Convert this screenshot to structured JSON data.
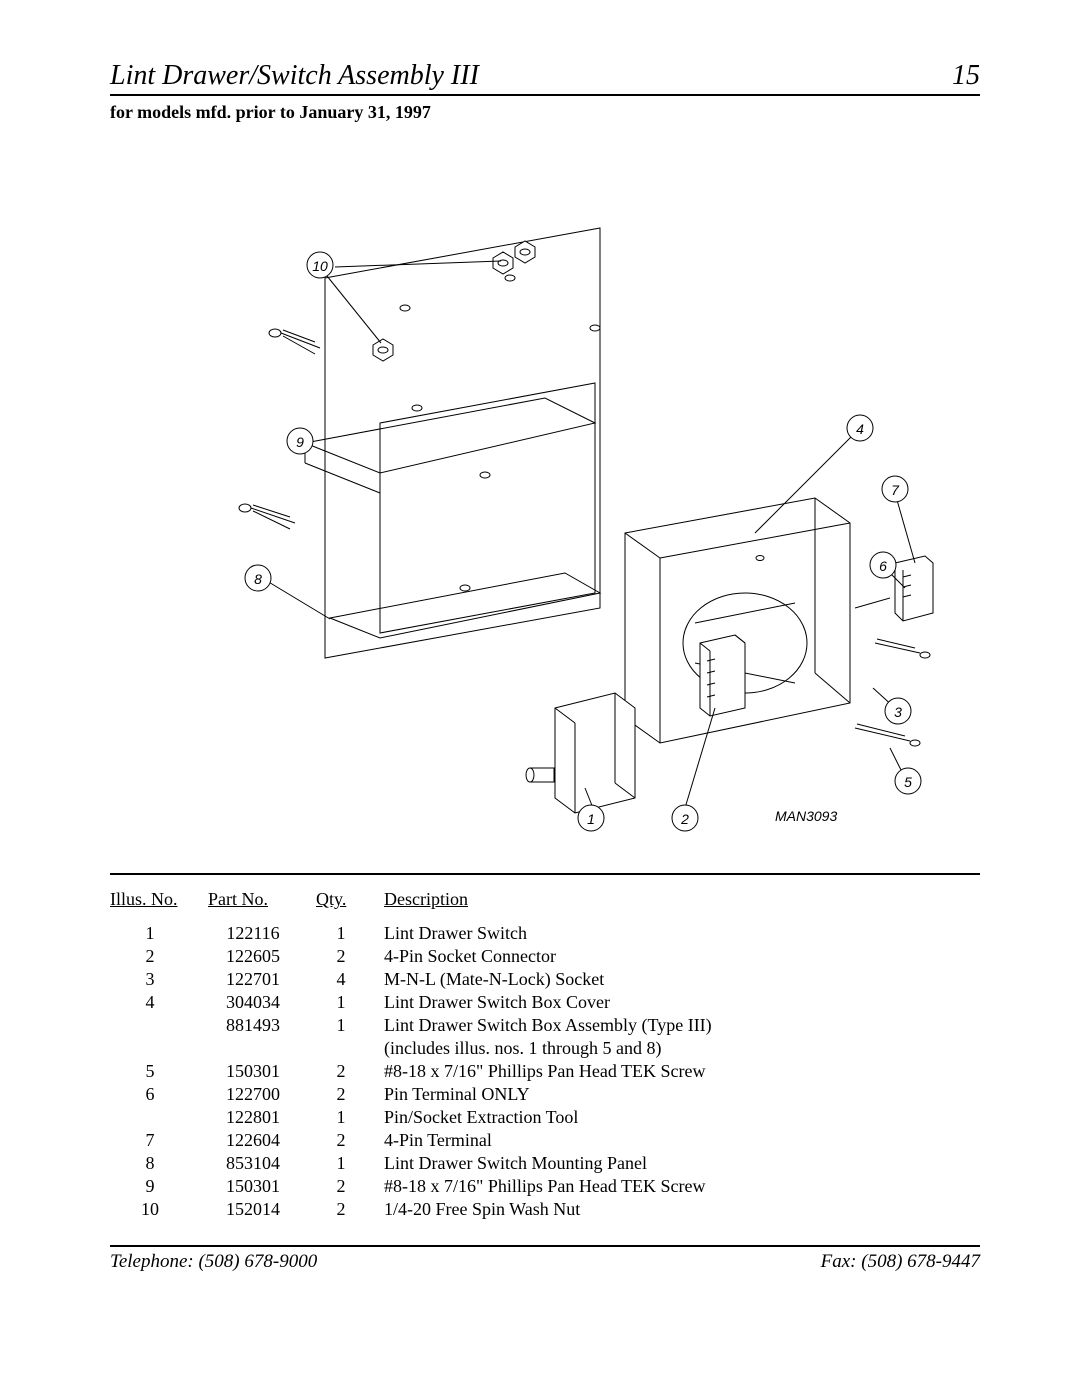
{
  "header": {
    "title": "Lint Drawer/Switch Assembly III",
    "page_number": "15",
    "title_fontsize": 28,
    "font_style": "italic"
  },
  "subheader": "for models mfd. prior to January 31, 1997",
  "figure": {
    "type": "exploded-technical-drawing",
    "drawing_id": "MAN3093",
    "callouts": [
      "1",
      "2",
      "3",
      "4",
      "5",
      "6",
      "7",
      "8",
      "9",
      "10"
    ],
    "stroke_color": "#000000",
    "stroke_width": 1,
    "background_color": "#ffffff",
    "callout_circle_radius": 12
  },
  "parts_table": {
    "columns": [
      "Illus. No.",
      "Part No.",
      "Qty.",
      "Description"
    ],
    "rows": [
      {
        "illus": "1",
        "part": "122116",
        "qty": "1",
        "desc": "Lint Drawer Switch"
      },
      {
        "illus": "2",
        "part": "122605",
        "qty": "2",
        "desc": "4-Pin Socket Connector"
      },
      {
        "illus": "3",
        "part": "122701",
        "qty": "4",
        "desc": "M-N-L (Mate-N-Lock) Socket"
      },
      {
        "illus": "4",
        "part": "304034",
        "qty": "1",
        "desc": "Lint Drawer Switch Box Cover"
      },
      {
        "illus": "",
        "part": "881493",
        "qty": "1",
        "desc": "Lint Drawer Switch Box Assembly (Type III)"
      },
      {
        "illus": "",
        "part": "",
        "qty": "",
        "desc": "(includes illus. nos. 1 through 5 and 8)"
      },
      {
        "illus": "5",
        "part": "150301",
        "qty": "2",
        "desc": "#8-18 x 7/16\" Phillips Pan Head TEK Screw"
      },
      {
        "illus": "6",
        "part": "122700",
        "qty": "2",
        "desc": "Pin Terminal ONLY"
      },
      {
        "illus": "",
        "part": "122801",
        "qty": "1",
        "desc": "Pin/Socket Extraction Tool"
      },
      {
        "illus": "7",
        "part": "122604",
        "qty": "2",
        "desc": "4-Pin Terminal"
      },
      {
        "illus": "8",
        "part": "853104",
        "qty": "1",
        "desc": "Lint Drawer Switch Mounting Panel"
      },
      {
        "illus": "9",
        "part": "150301",
        "qty": "2",
        "desc": "#8-18 x 7/16\" Phillips Pan Head TEK Screw"
      },
      {
        "illus": "10",
        "part": "152014",
        "qty": "2",
        "desc": "1/4-20 Free Spin Wash Nut"
      }
    ]
  },
  "footer": {
    "telephone_label": "Telephone: (508) 678-9000",
    "fax_label": "Fax: (508) 678-9447"
  }
}
